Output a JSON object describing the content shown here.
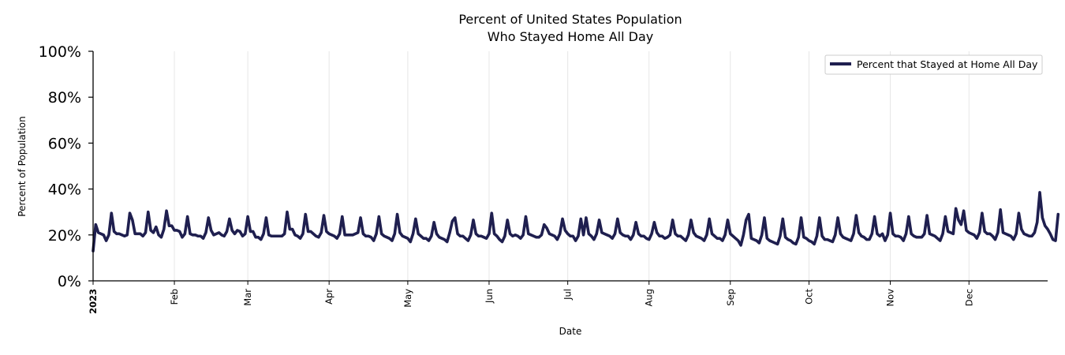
{
  "chart_data": {
    "type": "line",
    "title_line1": "Percent of United States Population",
    "title_line2": "Who Stayed Home All Day",
    "xlabel": "Date",
    "ylabel": "Percent of Population",
    "ylim": [
      0,
      100
    ],
    "yticks": [
      0,
      20,
      40,
      60,
      80,
      100
    ],
    "ytick_labels": [
      "0%",
      "20%",
      "40%",
      "60%",
      "80%",
      "100%"
    ],
    "x_range_days": [
      0,
      364
    ],
    "xticks": [
      {
        "label": "2023",
        "day": 0,
        "bold": true
      },
      {
        "label": "Feb",
        "day": 31
      },
      {
        "label": "Mar",
        "day": 59
      },
      {
        "label": "Apr",
        "day": 90
      },
      {
        "label": "May",
        "day": 120
      },
      {
        "label": "Jun",
        "day": 151
      },
      {
        "label": "Jul",
        "day": 181
      },
      {
        "label": "Aug",
        "day": 212
      },
      {
        "label": "Sep",
        "day": 243
      },
      {
        "label": "Oct",
        "day": 273
      },
      {
        "label": "Nov",
        "day": 304
      },
      {
        "label": "Dec",
        "day": 334
      }
    ],
    "grid": "vertical",
    "legend": {
      "entry": "Percent that Stayed at Home All Day",
      "placement": "top-right"
    },
    "series": [
      {
        "name": "Percent that Stayed at Home All Day",
        "color": "#1f1f4f",
        "start_date": "2023-01-01",
        "values": [
          13,
          24.5,
          21,
          20.5,
          20,
          17.5,
          20,
          29.5,
          21.5,
          20.5,
          20.5,
          20,
          19.5,
          20,
          29.5,
          26.5,
          20.5,
          20.5,
          20.5,
          19.5,
          21,
          30,
          22,
          21,
          23.5,
          20,
          19,
          22.5,
          30.5,
          24,
          24,
          22,
          22,
          21.5,
          19,
          20.5,
          28,
          20.5,
          20,
          20,
          19.5,
          19.5,
          18.5,
          21,
          27.5,
          22,
          20,
          20.5,
          21,
          20,
          19.5,
          21.5,
          27,
          22,
          20.5,
          22,
          21.5,
          19.5,
          20.5,
          28,
          21.5,
          21.5,
          19,
          19,
          18,
          20.5,
          27.5,
          20,
          19.5,
          19.5,
          19.5,
          19.5,
          19.5,
          20.5,
          30,
          22.5,
          22.5,
          20,
          19.5,
          18.5,
          20.5,
          29,
          21.5,
          21.5,
          20.5,
          19.5,
          19,
          21,
          28.5,
          21.5,
          20.5,
          20,
          19.5,
          18.5,
          20.5,
          28,
          20,
          20,
          20,
          20,
          20.5,
          21,
          27.5,
          20.5,
          19.5,
          19.5,
          19,
          17.5,
          20.5,
          28,
          20.5,
          19.5,
          19,
          18.5,
          17.5,
          20.5,
          29,
          21,
          19.5,
          19,
          18.5,
          17,
          20.5,
          27,
          20.5,
          19.5,
          18.5,
          18.5,
          17.5,
          19.5,
          25.5,
          20.5,
          19,
          18.5,
          18,
          17,
          21,
          26,
          27.5,
          20.5,
          19.5,
          19.5,
          18.5,
          17.5,
          20,
          26.5,
          20.5,
          19.5,
          19.5,
          19,
          18.5,
          20.5,
          29.5,
          20.5,
          19.5,
          18,
          17,
          19.5,
          26.5,
          20.5,
          19.5,
          20,
          19.5,
          18.5,
          20,
          28,
          20.5,
          20,
          19.5,
          19,
          19,
          20,
          24.5,
          23,
          20.5,
          20,
          19.5,
          18,
          20.5,
          27,
          22,
          20.5,
          19.5,
          19.5,
          17.5,
          19.5,
          27,
          20,
          27.5,
          20.5,
          19.5,
          18,
          20.5,
          26.5,
          21,
          20.5,
          20,
          19.5,
          18.5,
          20.5,
          27,
          21,
          20,
          19.5,
          19.5,
          18,
          20,
          25.5,
          20.5,
          19.5,
          19.5,
          18.5,
          18,
          20.5,
          25.5,
          21,
          19.5,
          19.5,
          18.5,
          19,
          20,
          26.5,
          20.5,
          19.5,
          19.5,
          18.5,
          17.5,
          20,
          26.5,
          21,
          19.5,
          19,
          18.5,
          17.5,
          20,
          27,
          20.5,
          19.5,
          18.5,
          18.5,
          17.5,
          20,
          26.5,
          20.5,
          19.5,
          18.5,
          17.5,
          15.5,
          20,
          26.5,
          29,
          18.5,
          18,
          17.5,
          16.5,
          20,
          27.5,
          18.5,
          17.5,
          17,
          16.5,
          16,
          19.5,
          27,
          19,
          18,
          17.5,
          16.5,
          16,
          19,
          27.5,
          19,
          18.5,
          17.5,
          17,
          16,
          19.5,
          27.5,
          19.5,
          18,
          18,
          17.5,
          17,
          20,
          27.5,
          20.5,
          19,
          18.5,
          18,
          17.5,
          20.5,
          28.5,
          21,
          19.5,
          19,
          18,
          18,
          20.5,
          28,
          20.5,
          19.5,
          20.5,
          17.5,
          20,
          29.5,
          20.5,
          19.5,
          19.5,
          19,
          17.5,
          20.5,
          28,
          20.5,
          19.5,
          19,
          19,
          19,
          20.5,
          28.5,
          20.5,
          20,
          19.5,
          18.5,
          17.5,
          20.5,
          28,
          21.5,
          21,
          20.5,
          31.5,
          26.5,
          24.5,
          30.5,
          22,
          21,
          20.5,
          20,
          18.5,
          21,
          29.5,
          21.5,
          20.5,
          20.5,
          19.5,
          18,
          21,
          31,
          21,
          20.5,
          20,
          19.5,
          18,
          20.5,
          29.5,
          22.5,
          20.5,
          20,
          19.5,
          19.5,
          21,
          25.5,
          38.5,
          27.5,
          24,
          22.5,
          20.5,
          18,
          17.5,
          29
        ]
      }
    ]
  }
}
